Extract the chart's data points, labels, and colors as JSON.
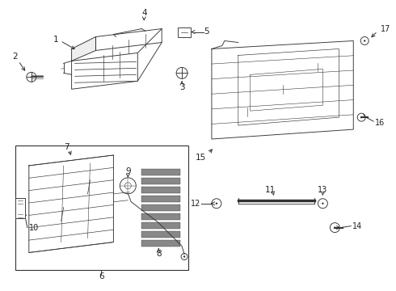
{
  "bg_color": "#ffffff",
  "line_color": "#333333",
  "text_color": "#222222",
  "figsize": [
    4.9,
    3.6
  ],
  "dpi": 100,
  "lw": 0.65
}
